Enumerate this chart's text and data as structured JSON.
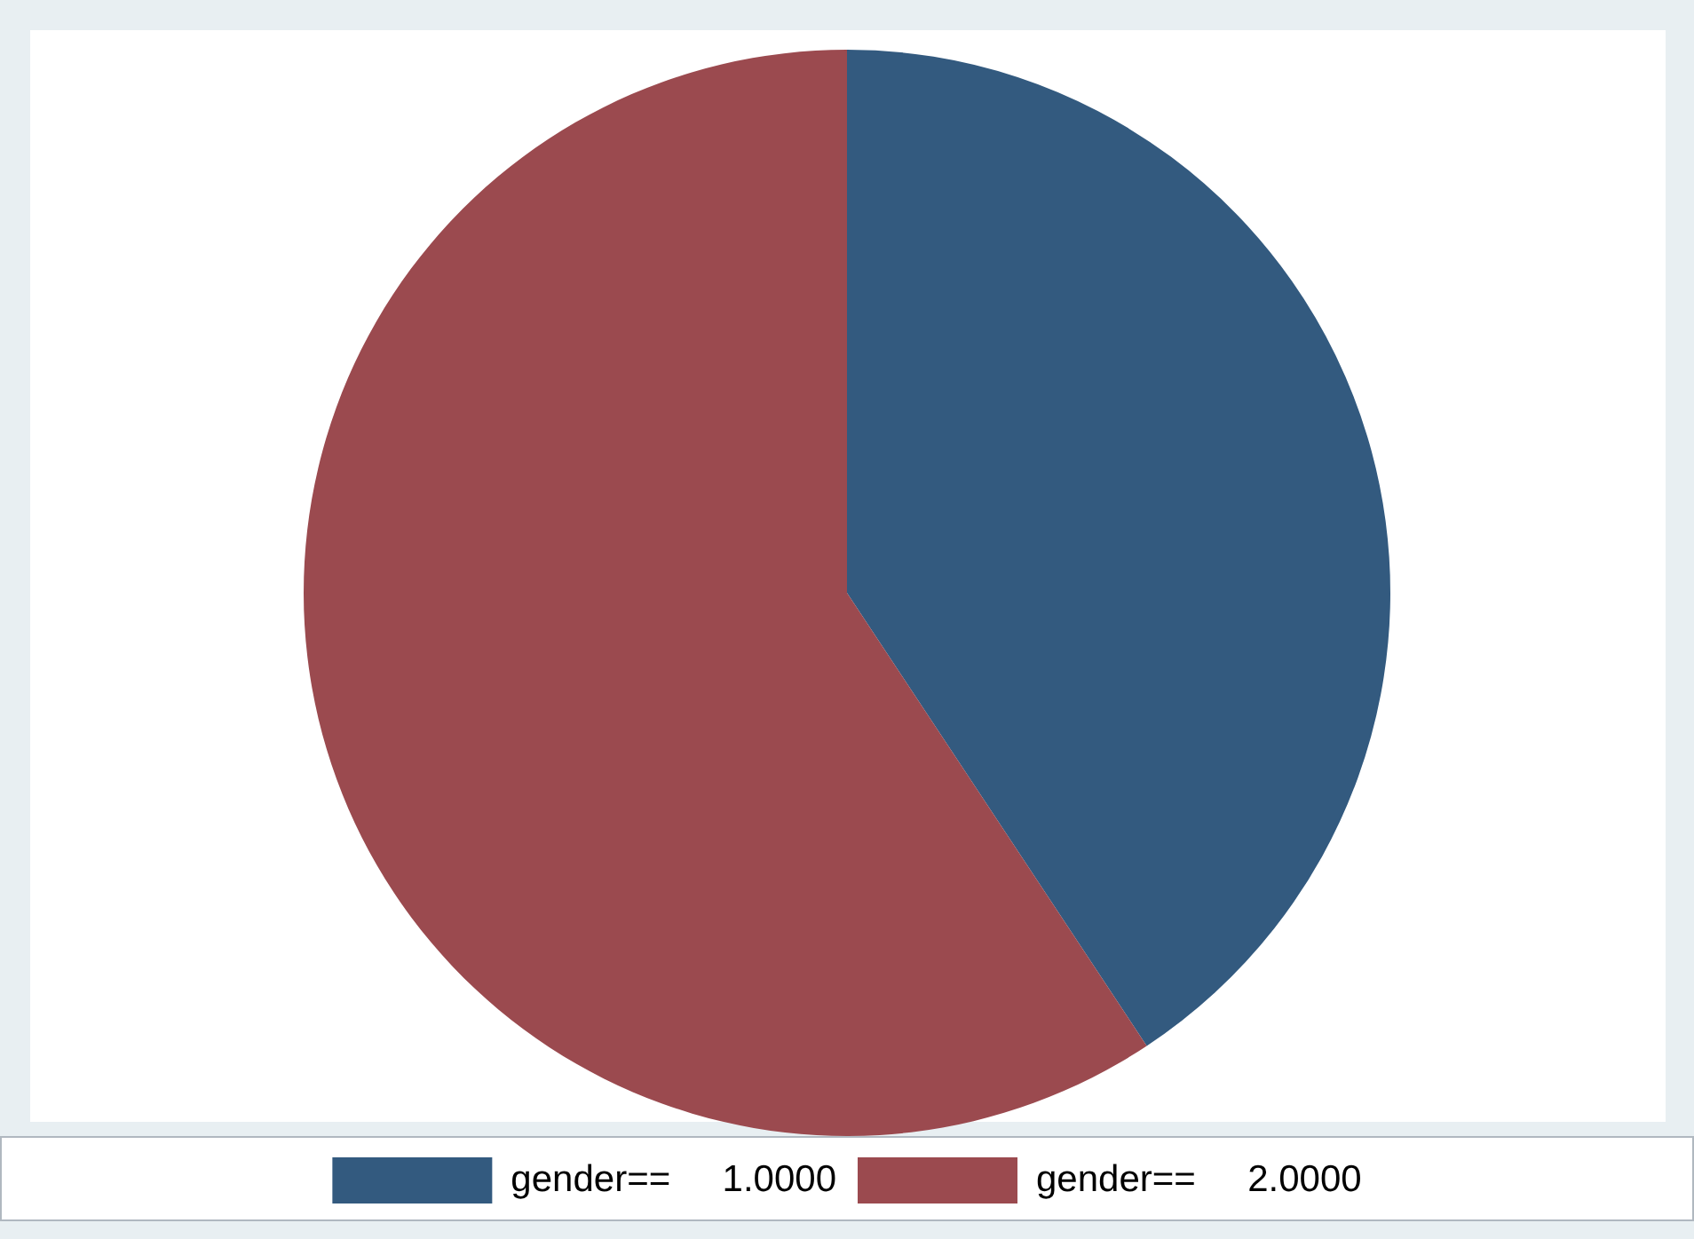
{
  "chart_data": {
    "type": "pie",
    "categories": [
      "gender==     1.0000",
      "gender==     2.0000"
    ],
    "values": [
      40.7,
      59.3
    ],
    "colors": [
      "#335a7f",
      "#9b4a4f"
    ],
    "legend": "bottom"
  }
}
